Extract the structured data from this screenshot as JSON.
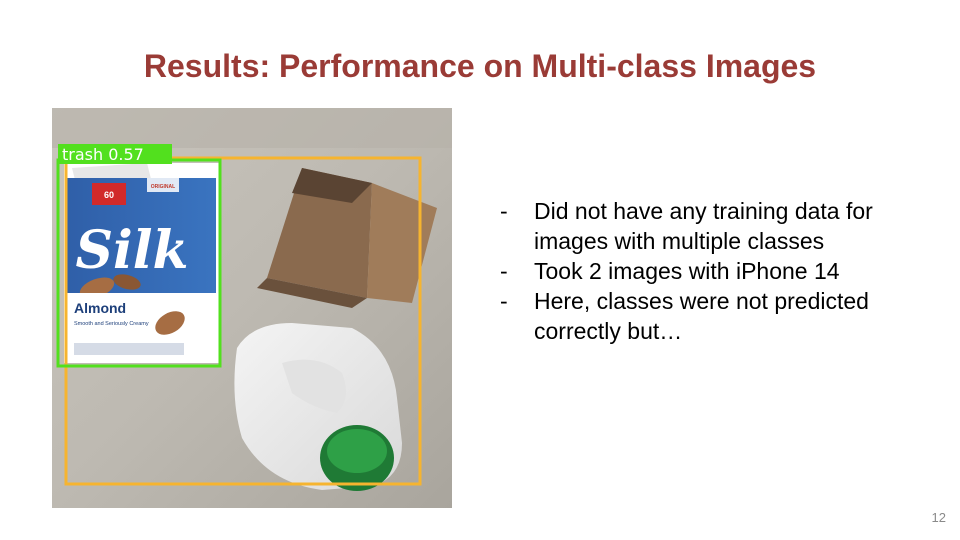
{
  "slide": {
    "title": "Results: Performance on Multi-class Images",
    "page_number": "12"
  },
  "photo": {
    "detection_label": "trash",
    "detection_score": "0.57",
    "detection_label_full": "trash  0.57",
    "carton_brand": "Silk",
    "carton_flavor": "Almond",
    "carton_badge": "60",
    "carton_badge_sub": "ORIGINAL",
    "carton_tagline": "Smooth and Seriously Creamy",
    "box_colors": {
      "green": "#52e01e",
      "orange": "#f6b42f"
    }
  },
  "bullets": {
    "dash": "-",
    "items": [
      "Did not have any training data for images with multiple classes",
      "Took 2 images with iPhone 14",
      "Here, classes were not predicted correctly but…"
    ]
  }
}
